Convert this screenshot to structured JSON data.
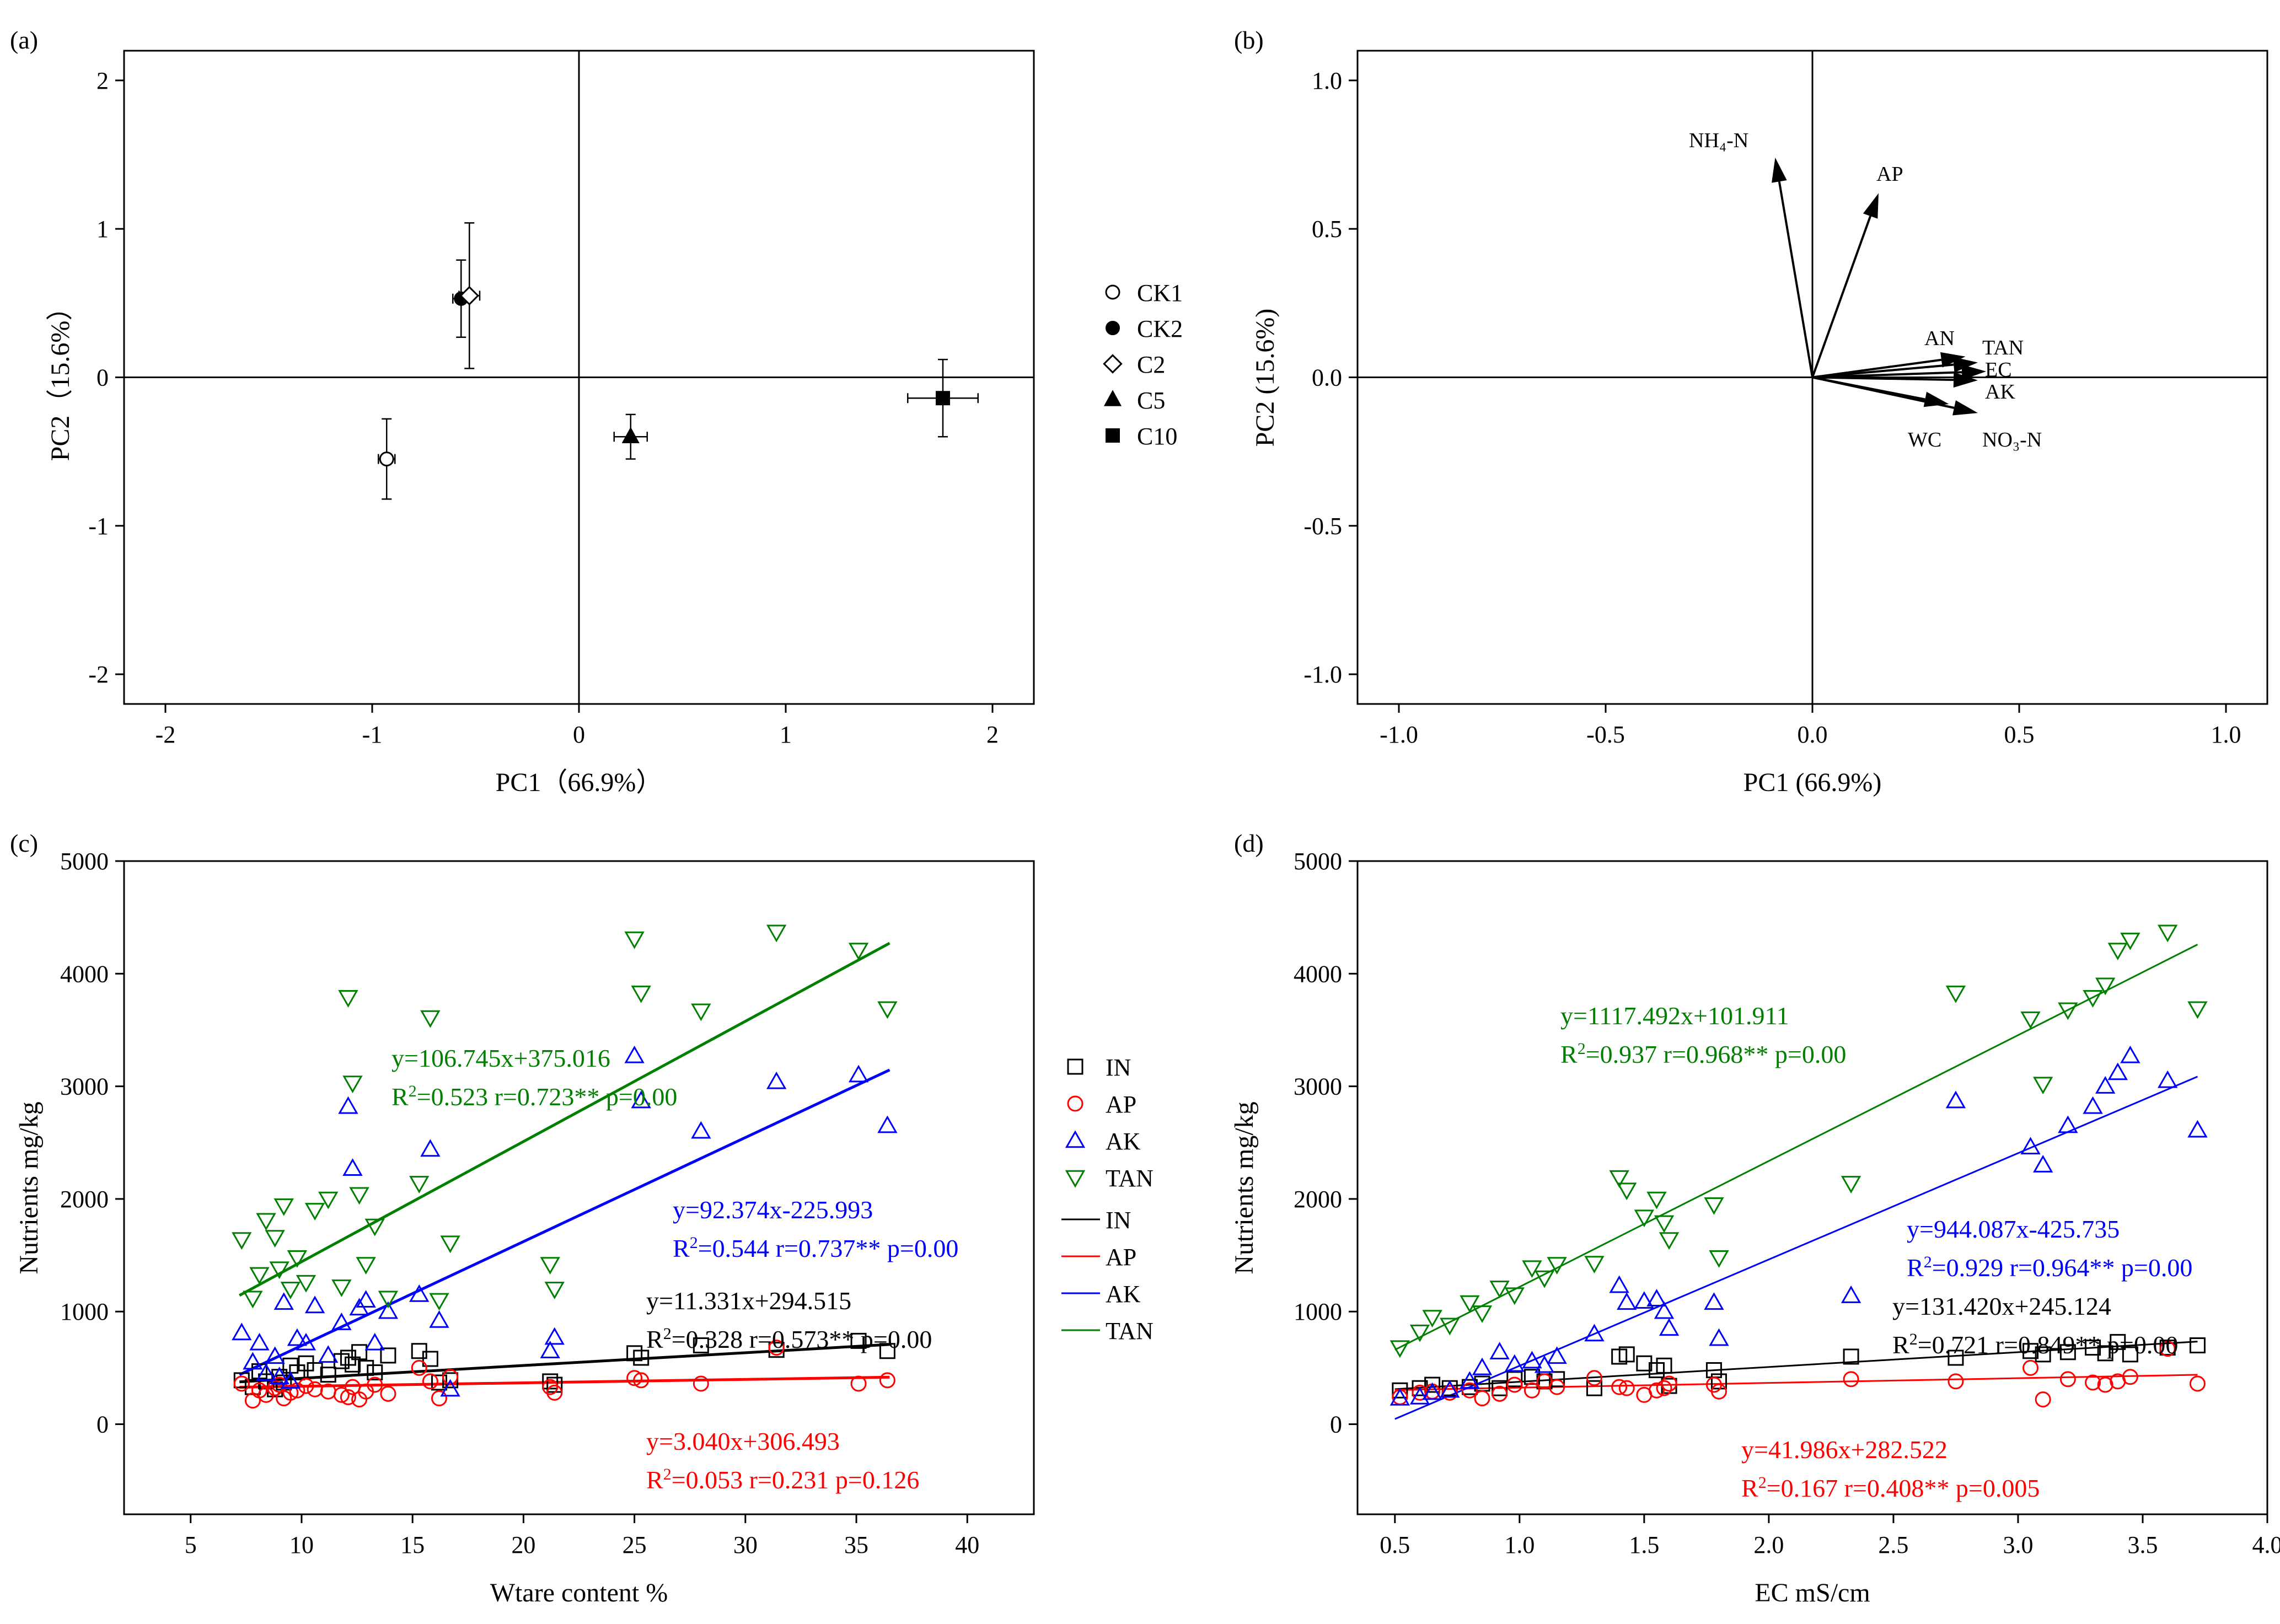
{
  "colors": {
    "black": "#000000",
    "red": "#ff0000",
    "blue": "#0000ff",
    "green": "#007f00",
    "green_line": "#008000"
  },
  "chart_data": [
    {
      "panel": "(a)",
      "type": "scatter",
      "xlabel": "PC1（66.9%）",
      "ylabel": "PC2（15.6%）",
      "xlim": [
        -2.2,
        2.2
      ],
      "ylim": [
        -2.2,
        2.2
      ],
      "xticks": [
        -2,
        -1,
        0,
        1,
        2
      ],
      "yticks": [
        -2,
        -1,
        0,
        1,
        2
      ],
      "legend_position": "right",
      "points": [
        {
          "name": "CK1",
          "marker": "circle-open",
          "x": -0.93,
          "y": -0.55,
          "xerr": 0.04,
          "yerr": 0.27
        },
        {
          "name": "CK2",
          "marker": "circle-filled",
          "x": -0.57,
          "y": 0.53,
          "xerr": 0.04,
          "yerr": 0.26
        },
        {
          "name": "C2",
          "marker": "diamond-open",
          "x": -0.53,
          "y": 0.55,
          "xerr": 0.05,
          "yerr": 0.49
        },
        {
          "name": "C5",
          "marker": "triangle-filled",
          "x": 0.25,
          "y": -0.4,
          "xerr": 0.08,
          "yerr": 0.15
        },
        {
          "name": "C10",
          "marker": "square-filled",
          "x": 1.76,
          "y": -0.14,
          "xerr": 0.17,
          "yerr": 0.26
        }
      ]
    },
    {
      "panel": "(b)",
      "type": "biplot",
      "xlabel": "PC1 (66.9%)",
      "ylabel": "PC2 (15.6%)",
      "xlim": [
        -1.1,
        1.1
      ],
      "ylim": [
        -1.1,
        1.1
      ],
      "xticks": [
        "-1.0",
        "-0.5",
        "0.0",
        "0.5",
        "1.0"
      ],
      "yticks": [
        "-1.0",
        "-0.5",
        "0.0",
        "0.5",
        "1.0"
      ],
      "vectors": [
        {
          "label": "NH₄-N",
          "x": -0.09,
          "y": 0.74
        },
        {
          "label": "AP",
          "x": 0.16,
          "y": 0.62
        },
        {
          "label": "AN",
          "x": 0.37,
          "y": 0.07
        },
        {
          "label": "TAN",
          "x": 0.4,
          "y": 0.05
        },
        {
          "label": "EC",
          "x": 0.42,
          "y": 0.02
        },
        {
          "label": "AK",
          "x": 0.4,
          "y": -0.01
        },
        {
          "label": "WC",
          "x": 0.33,
          "y": -0.09
        },
        {
          "label": "NO₃-N",
          "x": 0.4,
          "y": -0.12
        }
      ]
    },
    {
      "panel": "(c)",
      "type": "scatter",
      "xlabel": "Wtare content %",
      "ylabel": "Nutrients mg/kg",
      "xlim": [
        2,
        43
      ],
      "ylim": [
        -800,
        5000
      ],
      "xticks": [
        5,
        10,
        15,
        20,
        25,
        30,
        35,
        40
      ],
      "yticks": [
        0,
        1000,
        2000,
        3000,
        4000,
        5000
      ],
      "legend_position": "right",
      "series": [
        {
          "name": "IN",
          "color": "#000000",
          "marker": "square",
          "slope": 11.331,
          "intercept": 294.515,
          "fit_x": [
            7.2,
            36.5
          ],
          "eq": "y=11.331x+294.515",
          "r2": "0.328",
          "rstat": " r=0.573** p=0.00"
        },
        {
          "name": "AP",
          "color": "#ff0000",
          "marker": "circle",
          "slope": 3.04,
          "intercept": 306.493,
          "fit_x": [
            7.2,
            36.5
          ],
          "eq": "y=3.040x+306.493",
          "r2": "0.053",
          "rstat": " r=0.231 p=0.126"
        },
        {
          "name": "AK",
          "color": "#0000ff",
          "marker": "triangle-up",
          "slope": 92.374,
          "intercept": -225.993,
          "fit_x": [
            7.2,
            36.5
          ],
          "eq": "y=92.374x-225.993",
          "r2": "0.544",
          "rstat": " r=0.737** p=0.00"
        },
        {
          "name": "TAN",
          "color": "#007f00",
          "marker": "triangle-down",
          "slope": 106.745,
          "intercept": 375.016,
          "fit_x": [
            7.2,
            36.5
          ],
          "eq": "y=106.745x+375.016",
          "r2": "0.523",
          "rstat": " r=0.723** p=0.00"
        }
      ],
      "x_values": [
        7.3,
        7.8,
        8.1,
        8.4,
        8.8,
        9.0,
        9.2,
        9.5,
        9.8,
        10.2,
        10.6,
        11.2,
        11.8,
        12.1,
        12.3,
        12.6,
        12.9,
        13.3,
        13.9,
        15.3,
        15.8,
        16.2,
        16.7,
        21.2,
        21.4,
        25.0,
        25.3,
        28.0,
        31.4,
        35.1,
        36.4
      ],
      "IN_values": [
        390,
        330,
        470,
        380,
        310,
        420,
        370,
        520,
        460,
        540,
        480,
        440,
        560,
        590,
        530,
        640,
        500,
        460,
        610,
        650,
        580,
        370,
        390,
        380,
        350,
        630,
        590,
        700,
        660,
        740,
        650
      ],
      "AP_values": [
        360,
        210,
        300,
        260,
        320,
        350,
        230,
        280,
        300,
        340,
        310,
        290,
        260,
        240,
        330,
        220,
        290,
        350,
        270,
        500,
        380,
        230,
        420,
        330,
        280,
        410,
        390,
        360,
        680,
        360,
        390
      ],
      "AK_values": [
        810,
        550,
        720,
        450,
        600,
        420,
        1080,
        380,
        760,
        720,
        1050,
        610,
        900,
        2820,
        2270,
        1030,
        1100,
        720,
        1000,
        1150,
        2440,
        920,
        310,
        650,
        770,
        3270,
        2870,
        2600,
        3040,
        3100,
        2650
      ],
      "TAN_values": [
        1640,
        1120,
        1330,
        1810,
        1660,
        1380,
        1940,
        1200,
        1480,
        1260,
        1900,
        2000,
        1220,
        3790,
        3030,
        2040,
        1420,
        1760,
        1120,
        2140,
        3610,
        1100,
        1610,
        1420,
        1200,
        4310,
        3830,
        3670,
        4370,
        4210,
        3690
      ]
    },
    {
      "panel": "(d)",
      "type": "scatter",
      "xlabel": "EC mS/cm",
      "ylabel": "Nutrients mg/kg",
      "xlim": [
        0.35,
        4.0
      ],
      "ylim": [
        -800,
        5000
      ],
      "xticks": [
        "0.5",
        "1.0",
        "1.5",
        "2.0",
        "2.5",
        "3.0",
        "3.5",
        "4.0"
      ],
      "yticks": [
        0,
        1000,
        2000,
        3000,
        4000,
        5000
      ],
      "series": [
        {
          "name": "IN",
          "color": "#000000",
          "marker": "square",
          "slope": 131.42,
          "intercept": 245.124,
          "fit_x": [
            0.5,
            3.72
          ],
          "eq": "y=131.420x+245.124",
          "r2": "0.721",
          "rstat": " r=0.849** p=0.00"
        },
        {
          "name": "AP",
          "color": "#ff0000",
          "marker": "circle",
          "slope": 41.986,
          "intercept": 282.522,
          "fit_x": [
            0.5,
            3.72
          ],
          "eq": "y=41.986x+282.522",
          "r2": "0.167",
          "rstat": " r=0.408** p=0.005"
        },
        {
          "name": "AK",
          "color": "#0000ff",
          "marker": "triangle-up",
          "slope": 944.087,
          "intercept": -425.735,
          "fit_x": [
            0.5,
            3.72
          ],
          "eq": "y=944.087x-425.735",
          "r2": "0.929",
          "rstat": " r=0.964** p=0.00"
        },
        {
          "name": "TAN",
          "color": "#007f00",
          "marker": "triangle-down",
          "slope": 1117.492,
          "intercept": 101.911,
          "fit_x": [
            0.5,
            3.72
          ],
          "eq": "y=1117.492x+101.911",
          "r2": "0.937",
          "rstat": " r=0.968** p=0.00"
        }
      ],
      "x_values": [
        0.52,
        0.6,
        0.65,
        0.72,
        0.8,
        0.85,
        0.92,
        0.98,
        1.05,
        1.1,
        1.15,
        1.3,
        1.4,
        1.43,
        1.5,
        1.55,
        1.58,
        1.6,
        1.78,
        1.8,
        2.33,
        2.75,
        3.05,
        3.1,
        3.2,
        3.3,
        3.4,
        3.45,
        3.6,
        3.72,
        3.35
      ],
      "IN_values": [
        300,
        320,
        350,
        320,
        330,
        360,
        320,
        400,
        420,
        380,
        400,
        320,
        600,
        620,
        540,
        480,
        520,
        340,
        480,
        380,
        600,
        590,
        650,
        620,
        640,
        680,
        730,
        620,
        680,
        700,
        630
      ],
      "AP_values": [
        240,
        280,
        290,
        280,
        300,
        230,
        270,
        350,
        300,
        380,
        330,
        410,
        330,
        320,
        260,
        300,
        320,
        360,
        350,
        290,
        400,
        380,
        500,
        220,
        400,
        370,
        380,
        420,
        670,
        360,
        350
      ],
      "AK_values": [
        230,
        240,
        280,
        300,
        380,
        500,
        640,
        530,
        560,
        520,
        600,
        800,
        1230,
        1080,
        1090,
        1110,
        1000,
        850,
        1080,
        760,
        1140,
        2870,
        2460,
        2300,
        2650,
        2820,
        3120,
        3270,
        3050,
        2610,
        3000
      ],
      "TAN_values": [
        680,
        820,
        950,
        880,
        1080,
        990,
        1210,
        1150,
        1390,
        1300,
        1420,
        1430,
        2190,
        2080,
        1840,
        2000,
        1790,
        1640,
        1950,
        1480,
        2140,
        3830,
        3600,
        3020,
        3680,
        3790,
        4210,
        4300,
        4370,
        3690,
        3900
      ]
    }
  ]
}
